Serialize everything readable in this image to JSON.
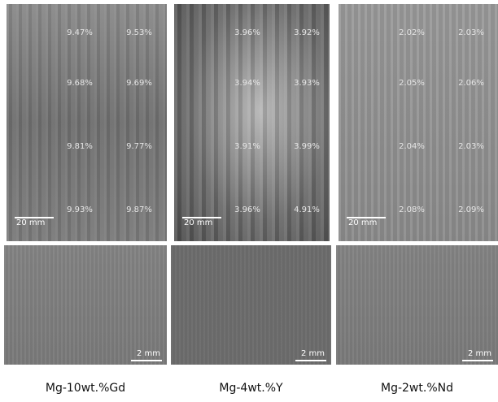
{
  "panels": [
    {
      "label": "Mg-10wt.%Gd",
      "top": {
        "values": [
          [
            "9.47%",
            "9.53%"
          ],
          [
            "9.68%",
            "9.69%"
          ],
          [
            "9.81%",
            "9.77%"
          ],
          [
            "9.93%",
            "9.87%"
          ]
        ],
        "scale": "20 mm"
      },
      "bottom": {
        "scale": "2 mm"
      }
    },
    {
      "label": "Mg-4wt.%Y",
      "top": {
        "values": [
          [
            "3.96%",
            "3.92%"
          ],
          [
            "3.94%",
            "3.93%"
          ],
          [
            "3.91%",
            "3.99%"
          ],
          [
            "3.96%",
            "4.91%"
          ]
        ],
        "scale": "20 mm"
      },
      "bottom": {
        "scale": "2 mm"
      }
    },
    {
      "label": "Mg-2wt.%Nd",
      "top": {
        "values": [
          [
            "2.02%",
            "2.03%"
          ],
          [
            "2.05%",
            "2.06%"
          ],
          [
            "2.04%",
            "2.03%"
          ],
          [
            "2.08%",
            "2.09%"
          ]
        ],
        "scale": "20 mm"
      },
      "bottom": {
        "scale": "2 mm"
      }
    }
  ]
}
